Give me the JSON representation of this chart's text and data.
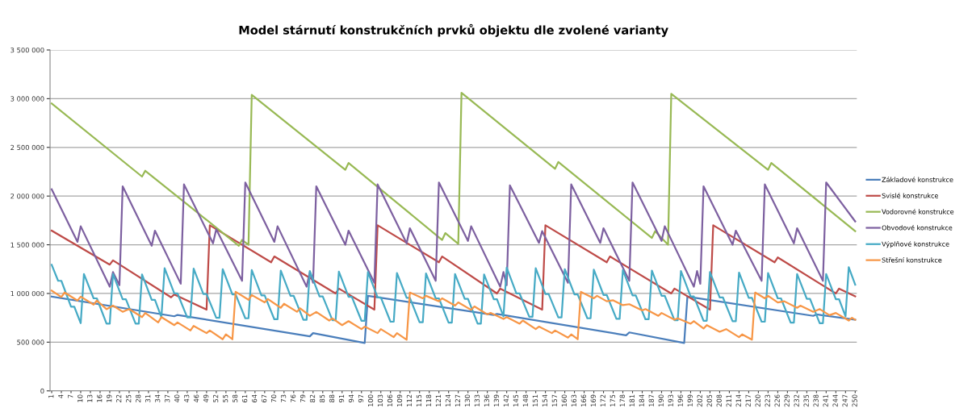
{
  "chart_data": {
    "type": "line",
    "title": "Model stárnutí konstrukčních prvků objektu dle zvolené varianty",
    "xlim": [
      0.5,
      250.5
    ],
    "xticks": [
      1,
      4,
      7,
      10,
      13,
      16,
      19,
      22,
      25,
      28,
      31,
      34,
      37,
      40,
      43,
      46,
      49,
      52,
      55,
      58,
      61,
      64,
      67,
      70,
      73,
      76,
      79,
      82,
      85,
      88,
      91,
      94,
      97,
      100,
      103,
      106,
      109,
      112,
      115,
      118,
      121,
      124,
      127,
      130,
      133,
      136,
      139,
      142,
      145,
      148,
      151,
      154,
      157,
      160,
      163,
      166,
      169,
      172,
      175,
      178,
      181,
      184,
      187,
      190,
      193,
      196,
      199,
      202,
      205,
      208,
      211,
      214,
      217,
      220,
      223,
      226,
      229,
      232,
      235,
      238,
      241,
      244,
      247,
      250
    ],
    "ylim": [
      0,
      3500000
    ],
    "yticks": [
      0,
      {
        "value": 500000,
        "label": "500 000"
      },
      {
        "value": 1000000,
        "label": "1 000 000"
      },
      {
        "value": 1500000,
        "label": "1 500 000"
      },
      {
        "value": 2000000,
        "label": "2 000 000"
      },
      {
        "value": 2500000,
        "label": "2 500 000"
      },
      {
        "value": 3000000,
        "label": "3 000 000"
      },
      {
        "value": 3500000,
        "label": "3 500 000"
      }
    ],
    "grid": "y",
    "legend": "right",
    "series": [
      {
        "name": "Základové konstrukce",
        "color": "#4a7ebb",
        "x": [
          1,
          39,
          40,
          81,
          82,
          98,
          99,
          138,
          139,
          179,
          180,
          197,
          198,
          237,
          238,
          250
        ],
        "values": [
          968000,
          766000,
          780000,
          560000,
          593000,
          492000,
          976000,
          780000,
          790000,
          570000,
          600000,
          492000,
          968000,
          770000,
          785000,
          730000
        ]
      },
      {
        "name": "Svislé konstrukce",
        "color": "#be4b48",
        "x": [
          1,
          19,
          20,
          38,
          39,
          49,
          50,
          69,
          70,
          89,
          90,
          101,
          102,
          121,
          122,
          139,
          140,
          153,
          154,
          173,
          174,
          193,
          194,
          205,
          206,
          225,
          226,
          244,
          245,
          250
        ],
        "values": [
          1645000,
          1296000,
          1340000,
          960000,
          990000,
          834000,
          1700000,
          1320000,
          1380000,
          1000000,
          1050000,
          834000,
          1700000,
          1320000,
          1380000,
          1000000,
          1050000,
          834000,
          1700000,
          1320000,
          1380000,
          1000000,
          1050000,
          834000,
          1700000,
          1320000,
          1370000,
          1000000,
          1050000,
          970000
        ]
      },
      {
        "name": "Vodorovné konstrukce",
        "color": "#98b954",
        "x": [
          1,
          29,
          30,
          59,
          60,
          62,
          63,
          92,
          93,
          122,
          123,
          127,
          128,
          157,
          158,
          187,
          188,
          192,
          193,
          223,
          224,
          250
        ],
        "values": [
          2950000,
          2200000,
          2260000,
          1490000,
          1550000,
          1500000,
          3040000,
          2270000,
          2340000,
          1550000,
          1620000,
          1510000,
          3060000,
          2280000,
          2350000,
          1570000,
          1640000,
          1500000,
          3050000,
          2270000,
          2340000,
          1640000
        ]
      },
      {
        "name": "Obvodové konstrukce",
        "color": "#7d60a0",
        "x": [
          1,
          9,
          10,
          19,
          20,
          22,
          23,
          32,
          33,
          41,
          42,
          51,
          52,
          60,
          61,
          70,
          71,
          80,
          81,
          82,
          83,
          92,
          93,
          101,
          102,
          111,
          112,
          120,
          121,
          130,
          131,
          140,
          141,
          142,
          143,
          152,
          153,
          161,
          162,
          171,
          172,
          180,
          181,
          190,
          191,
          200,
          201,
          202,
          203,
          212,
          213,
          221,
          222,
          231,
          232,
          240,
          241,
          250
        ],
        "values": [
          2070000,
          1530000,
          1690000,
          1070000,
          1220000,
          1085000,
          2100000,
          1490000,
          1645000,
          1100000,
          2120000,
          1515000,
          1660000,
          1130000,
          2140000,
          1530000,
          1690000,
          1070000,
          1220000,
          1110000,
          2100000,
          1500000,
          1645000,
          1110000,
          2120000,
          1515000,
          1670000,
          1130000,
          2140000,
          1540000,
          1690000,
          1070000,
          1220000,
          1085000,
          2110000,
          1520000,
          1640000,
          1110000,
          2120000,
          1520000,
          1670000,
          1130000,
          2140000,
          1540000,
          1690000,
          1070000,
          1230000,
          1100000,
          2100000,
          1500000,
          1645000,
          1130000,
          2120000,
          1515000,
          1670000,
          1130000,
          2140000,
          1740000
        ]
      },
      {
        "name": "Výplňové konstrukce",
        "color": "#46aac5",
        "x": [
          1,
          3,
          4,
          7,
          8,
          10,
          11,
          14,
          15,
          18,
          19,
          20,
          23,
          24,
          27,
          28,
          29,
          32,
          33,
          35,
          36,
          39,
          40,
          43,
          44,
          45,
          48,
          49,
          52,
          53,
          54,
          57,
          58,
          61,
          62,
          63,
          66,
          67,
          70,
          71,
          72,
          75,
          76,
          79,
          80,
          81,
          84,
          85,
          88,
          89,
          90,
          93,
          94,
          97,
          98,
          99,
          102,
          103,
          106,
          107,
          108,
          111,
          112,
          115,
          116,
          117,
          120,
          121,
          124,
          125,
          126,
          129,
          130,
          133,
          134,
          135,
          138,
          139,
          141,
          142,
          145,
          146,
          149,
          150,
          151,
          154,
          155,
          158,
          159,
          160,
          163,
          164,
          167,
          168,
          169,
          172,
          173,
          176,
          177,
          178,
          181,
          182,
          185,
          186,
          187,
          190,
          191,
          194,
          195,
          196,
          199,
          200,
          203,
          204,
          205,
          208,
          209,
          212,
          213,
          214,
          217,
          218,
          221,
          222,
          223,
          226,
          227,
          230,
          231,
          232,
          235,
          236,
          239,
          240,
          241,
          244,
          245,
          247,
          248,
          250
        ],
        "values": [
          1295000,
          1130000,
          1130000,
          865000,
          865000,
          695000,
          1200000,
          950000,
          950000,
          690000,
          690000,
          1200000,
          940000,
          940000,
          690000,
          690000,
          1195000,
          935000,
          935000,
          757000,
          1260000,
          1000000,
          1000000,
          755000,
          755000,
          1255000,
          995000,
          995000,
          750000,
          750000,
          1250000,
          990000,
          990000,
          745000,
          745000,
          1240000,
          980000,
          980000,
          735000,
          735000,
          1235000,
          975000,
          975000,
          730000,
          730000,
          1230000,
          970000,
          970000,
          725000,
          725000,
          1225000,
          965000,
          965000,
          720000,
          720000,
          1220000,
          960000,
          960000,
          710000,
          710000,
          1210000,
          955000,
          955000,
          705000,
          705000,
          1205000,
          950000,
          950000,
          700000,
          700000,
          1200000,
          945000,
          945000,
          690000,
          690000,
          1195000,
          940000,
          940000,
          765000,
          1265000,
          1000000,
          1000000,
          760000,
          760000,
          1260000,
          995000,
          995000,
          755000,
          755000,
          1250000,
          990000,
          990000,
          745000,
          745000,
          1245000,
          985000,
          985000,
          740000,
          740000,
          1240000,
          980000,
          980000,
          735000,
          735000,
          1235000,
          975000,
          975000,
          725000,
          725000,
          1230000,
          970000,
          970000,
          720000,
          720000,
          1220000,
          960000,
          960000,
          715000,
          715000,
          1215000,
          955000,
          955000,
          710000,
          710000,
          1210000,
          950000,
          950000,
          700000,
          700000,
          1200000,
          945000,
          945000,
          695000,
          695000,
          1200000,
          940000,
          940000,
          765000,
          1270000,
          1090000
        ]
      },
      {
        "name": "Střešní konstrukce",
        "color": "#f79646",
        "x": [
          1,
          4,
          5,
          9,
          10,
          14,
          15,
          18,
          20,
          23,
          25,
          29,
          30,
          34,
          35,
          39,
          40,
          44,
          45,
          49,
          50,
          54,
          55,
          57,
          58,
          62,
          63,
          67,
          68,
          72,
          73,
          77,
          78,
          81,
          83,
          87,
          88,
          91,
          93,
          97,
          98,
          102,
          103,
          107,
          108,
          111,
          112,
          116,
          117,
          121,
          122,
          126,
          127,
          131,
          132,
          136,
          137,
          141,
          142,
          146,
          147,
          151,
          152,
          156,
          157,
          161,
          162,
          164,
          165,
          169,
          170,
          173,
          175,
          178,
          180,
          184,
          185,
          189,
          190,
          194,
          195,
          199,
          200,
          203,
          204,
          208,
          210,
          214,
          215,
          218,
          219,
          222,
          223,
          226,
          228,
          232,
          233,
          237,
          239,
          242,
          244,
          248,
          249,
          250
        ],
        "values": [
          1030000,
          963000,
          1010000,
          927000,
          968000,
          886000,
          927000,
          839000,
          875000,
          812000,
          840000,
          757000,
          800000,
          703000,
          757000,
          675000,
          703000,
          620000,
          667000,
          593000,
          620000,
          530000,
          580000,
          530000,
          1017000,
          935000,
          984000,
          908000,
          943000,
          853000,
          894000,
          812000,
          848000,
          771000,
          810000,
          722000,
          744000,
          675000,
          716000,
          634000,
          660000,
          593000,
          634000,
          552000,
          593000,
          525000,
          1010000,
          950000,
          976000,
          920000,
          950000,
          875000,
          908000,
          831000,
          867000,
          785000,
          800000,
          738000,
          757000,
          690000,
          722000,
          634000,
          660000,
          593000,
          620000,
          547000,
          580000,
          530000,
          1017000,
          950000,
          976000,
          920000,
          930000,
          880000,
          890000,
          826000,
          840000,
          770000,
          800000,
          730000,
          745000,
          690000,
          716000,
          640000,
          675000,
          607000,
          634000,
          552000,
          580000,
          525000,
          1010000,
          950000,
          976000,
          908000,
          920000,
          853000,
          875000,
          812000,
          840000,
          777000,
          800000,
          722000,
          750000,
          730000
        ]
      }
    ]
  }
}
